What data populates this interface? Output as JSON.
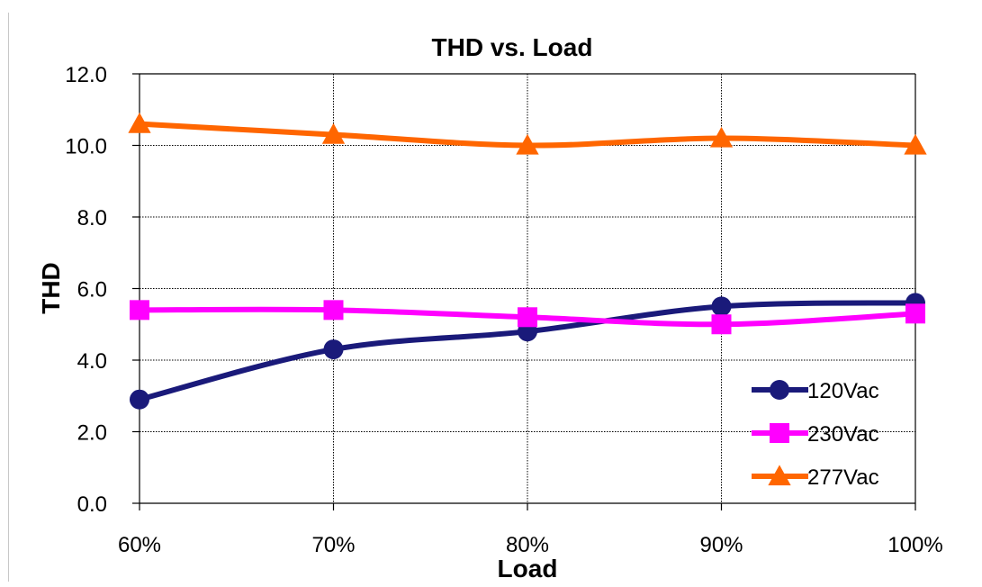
{
  "chart_data": {
    "type": "line",
    "title": "THD vs. Load",
    "xlabel": "Load",
    "ylabel": "THD",
    "categories": [
      "60%",
      "70%",
      "80%",
      "90%",
      "100%"
    ],
    "ylim": [
      0,
      12
    ],
    "yticks": [
      "0.0",
      "2.0",
      "4.0",
      "6.0",
      "8.0",
      "10.0",
      "12.0"
    ],
    "grid": true,
    "legend_position": "bottom-right",
    "series": [
      {
        "name": "120Vac",
        "color": "#1a1a7a",
        "marker": "circle",
        "values": [
          2.9,
          4.3,
          4.8,
          5.5,
          5.6
        ]
      },
      {
        "name": "230Vac",
        "color": "#ff00ff",
        "marker": "square",
        "values": [
          5.4,
          5.4,
          5.2,
          5.0,
          5.3
        ]
      },
      {
        "name": "277Vac",
        "color": "#ff6600",
        "marker": "triangle",
        "values": [
          10.6,
          10.3,
          10.0,
          10.2,
          10.0
        ]
      }
    ]
  }
}
